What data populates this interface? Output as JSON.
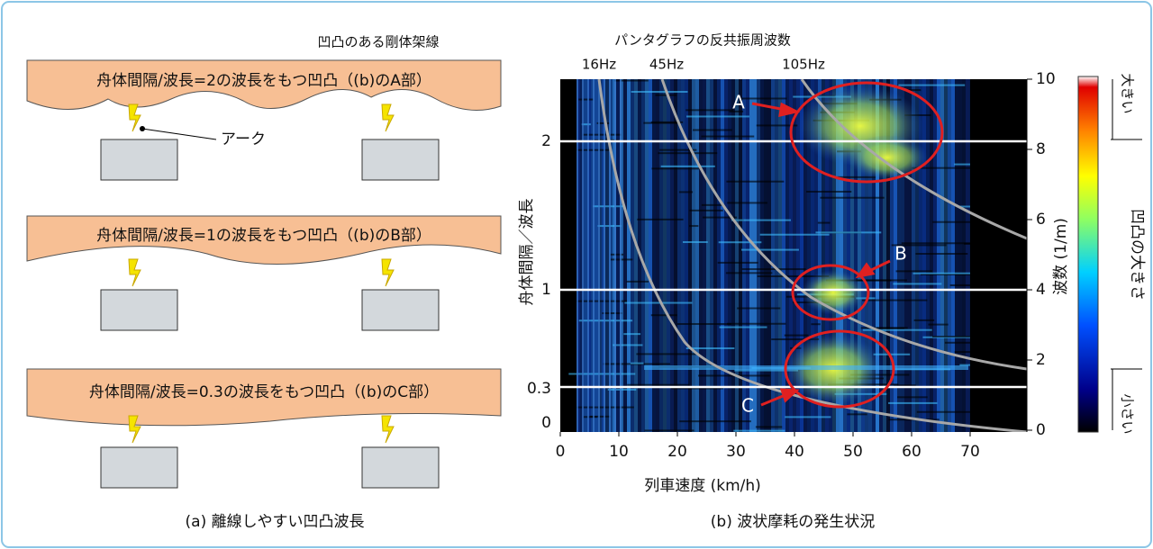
{
  "left": {
    "title": "凹凸のある剛体架線",
    "panels": [
      "舟体間隔/波長=2の波長をもつ凹凸（(b)のA部）",
      "舟体間隔/波長=1の波長をもつ凹凸（(b)のB部）",
      "舟体間隔/波長=0.3の波長をもつ凹凸（(b)のC部）"
    ],
    "arc_label": "アーク",
    "caption": "(a) 離線しやすい凹凸波長"
  },
  "right": {
    "title": "パンタグラフの反共振周波数",
    "freq_labels": [
      "16Hz",
      "45Hz",
      "105Hz"
    ],
    "x_label": "列車速度 (km/h)",
    "x_ticks": [
      0,
      10,
      20,
      30,
      40,
      50,
      60,
      70
    ],
    "y_left_label": "舟体間隔／波長",
    "y_left_ticks": [
      2,
      1,
      0.3,
      0
    ],
    "y_right_label": "波数 (1/m)",
    "y_right_ticks": [
      10,
      8,
      6,
      4,
      2,
      0
    ],
    "markers": [
      "A",
      "B",
      "C"
    ],
    "colorbar": {
      "label": "凹凸の大きさ",
      "high": "大きい",
      "low": "小さい"
    },
    "caption": "(b) 波状摩耗の発生状況"
  }
}
